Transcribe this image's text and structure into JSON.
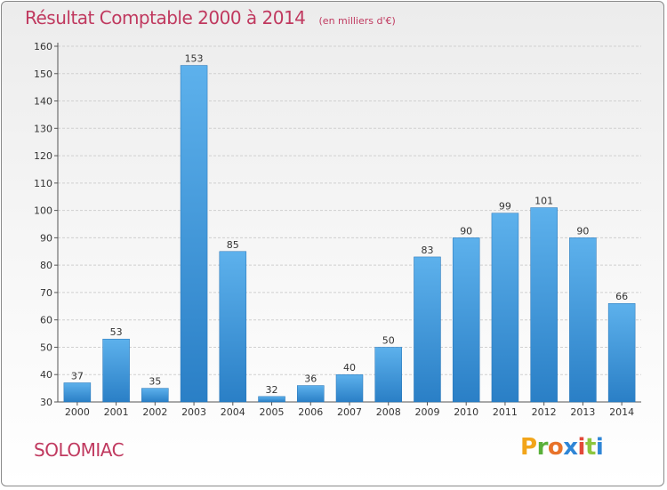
{
  "chart_data": {
    "type": "bar",
    "title": "Résultat Comptable 2000 à 2014",
    "subtitle": "(en milliers d'€)",
    "categories": [
      "2000",
      "2001",
      "2002",
      "2003",
      "2004",
      "2005",
      "2006",
      "2007",
      "2008",
      "2009",
      "2010",
      "2011",
      "2012",
      "2013",
      "2014"
    ],
    "values": [
      37,
      53,
      35,
      153,
      85,
      32,
      36,
      40,
      50,
      83,
      90,
      99,
      101,
      90,
      66
    ],
    "ylim": [
      30,
      160
    ],
    "yticks": [
      30,
      40,
      50,
      60,
      70,
      80,
      90,
      100,
      110,
      120,
      130,
      140,
      150,
      160
    ],
    "xlabel": "",
    "ylabel": "",
    "grid": true,
    "bar_color": "#3d95d9"
  },
  "commune": "SOLOMIAC",
  "brand": {
    "letters": [
      "P",
      "r",
      "o",
      "x",
      "i",
      "t",
      "i"
    ],
    "colors": [
      "#f2a51a",
      "#5ab03a",
      "#e8732a",
      "#2f86d6",
      "#e2493a",
      "#8cc63f",
      "#2f86d6"
    ]
  }
}
